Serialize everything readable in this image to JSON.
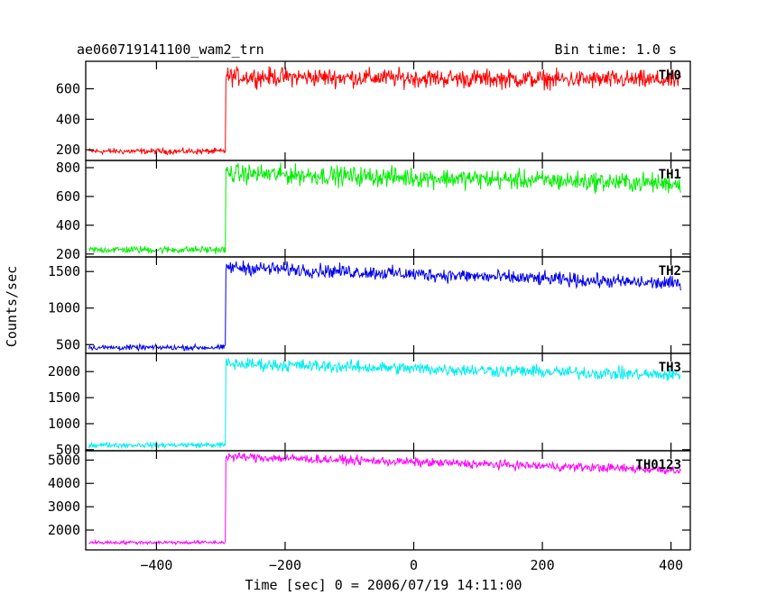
{
  "header": {
    "title": "ae060719141100_wam2_trn",
    "bin_time": "Bin time: 1.0 s"
  },
  "chart_data": {
    "type": "line",
    "title": "ae060719141100_wam2_trn",
    "xlabel": "Time [sec] 0 = 2006/07/19 14:11:00",
    "ylabel": "Counts/sec",
    "xlim": [
      -510,
      430
    ],
    "x_ticks": [
      -400,
      -200,
      0,
      200,
      400
    ],
    "x_tick_labels": [
      "−400",
      "−200",
      "0",
      "200",
      "400"
    ],
    "grid": false,
    "shared_x": {
      "start": -505,
      "end": 415,
      "step": 1,
      "step_time": -292
    },
    "panels": [
      {
        "name": "TH0",
        "color": "#ff0000",
        "ylim": [
          130,
          780
        ],
        "yticks": [
          200,
          400,
          600
        ],
        "pre_level": 190,
        "pre_noise": 28,
        "post_start": 680,
        "post_end": 655,
        "post_noise": 90
      },
      {
        "name": "TH1",
        "color": "#00ee00",
        "ylim": [
          180,
          850
        ],
        "yticks": [
          200,
          400,
          600,
          800
        ],
        "pre_level": 230,
        "pre_noise": 38,
        "post_start": 760,
        "post_end": 690,
        "post_noise": 100
      },
      {
        "name": "TH2",
        "color": "#0000ee",
        "ylim": [
          380,
          1700
        ],
        "yticks": [
          500,
          1000,
          1500
        ],
        "pre_level": 460,
        "pre_noise": 55,
        "post_start": 1560,
        "post_end": 1330,
        "post_noise": 140
      },
      {
        "name": "TH3",
        "color": "#00eeee",
        "ylim": [
          480,
          2350
        ],
        "yticks": [
          500,
          1000,
          1500,
          2000
        ],
        "pre_level": 590,
        "pre_noise": 75,
        "post_start": 2150,
        "post_end": 1930,
        "post_noise": 180
      },
      {
        "name": "TH0123",
        "color": "#ff00ff",
        "ylim": [
          1150,
          5400
        ],
        "yticks": [
          2000,
          3000,
          4000,
          5000
        ],
        "pre_level": 1470,
        "pre_noise": 110,
        "post_start": 5150,
        "post_end": 4570,
        "post_noise": 280
      }
    ]
  }
}
